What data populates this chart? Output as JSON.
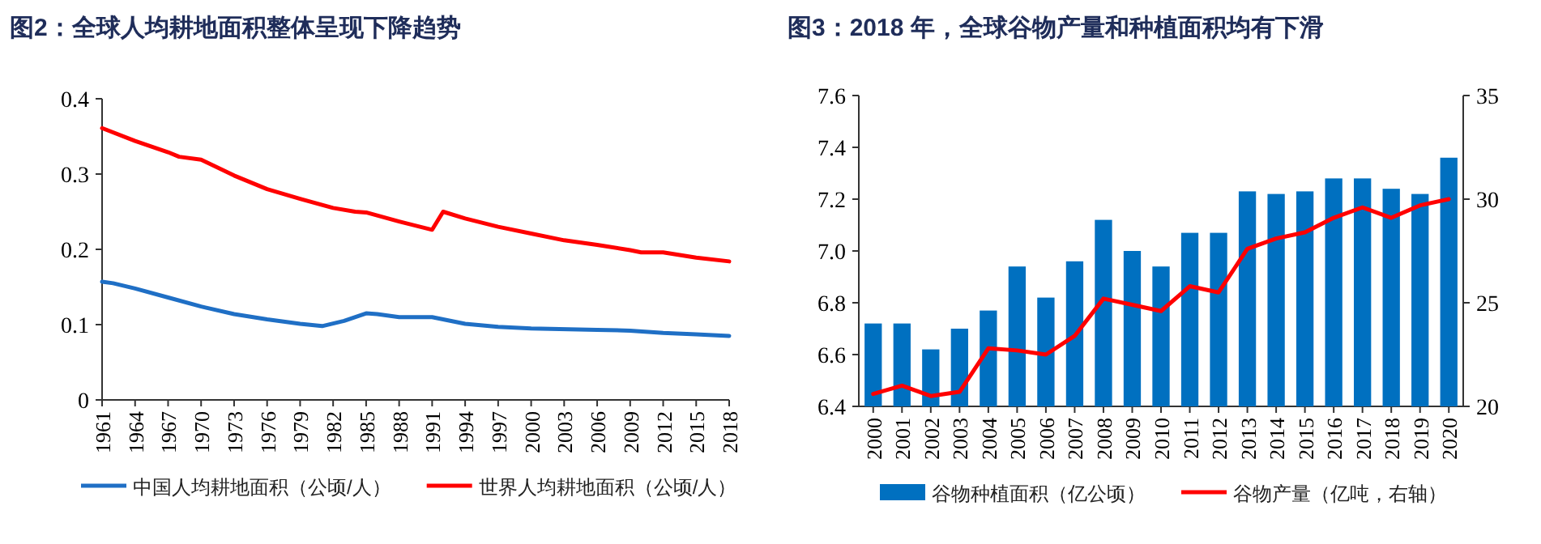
{
  "chart_data": [
    {
      "type": "line",
      "title": "图2：全球人均耕地面积整体呈现下降趋势",
      "xlim": [
        1961,
        2018
      ],
      "xticks": [
        1961,
        1964,
        1967,
        1970,
        1973,
        1976,
        1979,
        1982,
        1985,
        1988,
        1991,
        1994,
        1997,
        2000,
        2003,
        2006,
        2009,
        2012,
        2015,
        2018
      ],
      "ylim": [
        0,
        0.4
      ],
      "yticks": [
        0,
        0.1,
        0.2,
        0.3,
        0.4
      ],
      "legend": "bottom",
      "series": [
        {
          "name": "中国人均耕地面积（公顷/人）",
          "color": "#1f6fc5",
          "x": [
            1961,
            1962,
            1964,
            1967,
            1970,
            1973,
            1976,
            1979,
            1981,
            1983,
            1985,
            1986,
            1988,
            1991,
            1994,
            1997,
            2000,
            2006,
            2009,
            2012,
            2015,
            2018
          ],
          "values": [
            0.157,
            0.155,
            0.148,
            0.136,
            0.124,
            0.114,
            0.107,
            0.101,
            0.098,
            0.105,
            0.115,
            0.114,
            0.11,
            0.11,
            0.101,
            0.097,
            0.095,
            0.093,
            0.092,
            0.089,
            0.087,
            0.085
          ]
        },
        {
          "name": "世界人均耕地面积（公顷/人）",
          "color": "#ff0000",
          "x": [
            1961,
            1964,
            1967,
            1968,
            1970,
            1973,
            1976,
            1979,
            1982,
            1984,
            1985,
            1988,
            1991,
            1992,
            1994,
            1997,
            2000,
            2003,
            2006,
            2009,
            2010,
            2012,
            2015,
            2018
          ],
          "values": [
            0.361,
            0.344,
            0.329,
            0.323,
            0.319,
            0.298,
            0.28,
            0.267,
            0.255,
            0.25,
            0.249,
            0.237,
            0.226,
            0.25,
            0.241,
            0.23,
            0.221,
            0.212,
            0.206,
            0.199,
            0.196,
            0.196,
            0.189,
            0.184
          ]
        }
      ]
    },
    {
      "type": "bar",
      "title": "图3：2018 年，全球谷物产量和种植面积均有下滑",
      "categories": [
        "2000",
        "2001",
        "2002",
        "2003",
        "2004",
        "2005",
        "2006",
        "2007",
        "2008",
        "2009",
        "2010",
        "2011",
        "2012",
        "2013",
        "2014",
        "2015",
        "2016",
        "2017",
        "2018",
        "2019",
        "2020"
      ],
      "ylim": [
        6.4,
        7.6
      ],
      "yticks": [
        6.4,
        6.6,
        6.8,
        {
          "value": 7.0,
          "label": "7.0"
        },
        7.2,
        7.4,
        7.6
      ],
      "y2lim": [
        20,
        35
      ],
      "y2ticks": [
        20,
        25,
        30,
        35
      ],
      "legend": "bottom",
      "series": [
        {
          "name": "谷物种植面积（亿公顷）",
          "color": "#0070c0",
          "values": [
            6.72,
            6.72,
            6.62,
            6.7,
            6.77,
            6.94,
            6.82,
            6.96,
            7.12,
            7.0,
            6.94,
            7.07,
            7.07,
            7.23,
            7.22,
            7.23,
            7.28,
            7.28,
            7.24,
            7.22,
            7.36
          ]
        },
        {
          "name": "谷物产量（亿吨，右轴）",
          "type": "line",
          "axis": "y2",
          "color": "#ff0000",
          "values": [
            20.6,
            21.0,
            20.5,
            20.7,
            22.8,
            22.7,
            22.5,
            23.4,
            25.2,
            24.9,
            24.6,
            25.8,
            25.5,
            27.6,
            28.1,
            28.4,
            29.1,
            29.6,
            29.1,
            29.7,
            30.0
          ]
        }
      ]
    }
  ]
}
